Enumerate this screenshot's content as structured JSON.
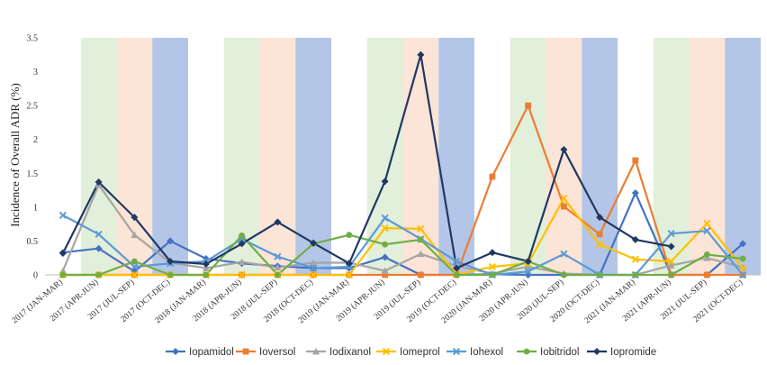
{
  "chart_data": {
    "type": "line",
    "title": "",
    "xlabel": "",
    "ylabel": "Incidence of Overall ADR (%)",
    "ylim": [
      0,
      3.5
    ],
    "yticks": [
      "0",
      "0.5",
      "1",
      "1.5",
      "2",
      "2.5",
      "3",
      "3.5"
    ],
    "grid": false,
    "legend_position": "bottom",
    "categories": [
      "2017 (JAN-MAR)",
      "2017 (APR-JUN)",
      "2017 (JUL-SEP)",
      "2017 (OCT-DEC)",
      "2018 (JAN-MAR)",
      "2018 (APR-JUN)",
      "2018 (JUL-SEP)",
      "2018 (OCT-DEC)",
      "2019 (JAN-MAR)",
      "2019 (APR-JUN)",
      "2019 (JUL-SEP)",
      "2019 (OCT-DEC)",
      "2020 (JAN-MAR)",
      "2020 (APR-JUN)",
      "2020 (JUL-SEP)",
      "2020 (OCT-DEC)",
      "2021 (JAN-MAR)",
      "2021 (APR-JUN)",
      "2021 (JUL-SEP)",
      "2021 (OCT-DEC)"
    ],
    "quarter_band_colors": {
      "APR-JUN": "#e2efda",
      "JUL-SEP": "#fce4d6",
      "OCT-DEC": "#b4c6e7"
    },
    "series": [
      {
        "name": "Iopamidol",
        "color": "#4472c4",
        "marker": "diamond",
        "values": [
          0.33,
          0.39,
          0.05,
          0.5,
          0.24,
          0.17,
          0.13,
          0.1,
          0.1,
          0.26,
          0.0,
          0.0,
          0.01,
          0.0,
          0.0,
          0.0,
          1.21,
          0.0,
          0.0,
          0.46
        ]
      },
      {
        "name": "Ioversol",
        "color": "#ed7d31",
        "marker": "square",
        "values": [
          0,
          0,
          0,
          0,
          0,
          0,
          0,
          0,
          0,
          0,
          0,
          0,
          1.45,
          2.5,
          1.01,
          0.6,
          1.69,
          0.0,
          0.0,
          0.0
        ]
      },
      {
        "name": "Iodixanol",
        "color": "#a5a5a5",
        "marker": "triangle",
        "values": [
          0.06,
          1.33,
          0.59,
          0.18,
          0.1,
          0.19,
          0.11,
          0.18,
          0.18,
          0.06,
          0.31,
          0.13,
          0.02,
          0.12,
          0.02,
          0.0,
          0.0,
          0.14,
          0.25,
          0.11
        ]
      },
      {
        "name": "Iomeprol",
        "color": "#ffc000",
        "marker": "x",
        "values": [
          0,
          0,
          0,
          0,
          0,
          0,
          0,
          0,
          0,
          0.69,
          0.68,
          0.0,
          0.12,
          0.17,
          1.13,
          0.45,
          0.23,
          0.2,
          0.76,
          0.1
        ]
      },
      {
        "name": "Iohexol",
        "color": "#5b9bd5",
        "marker": "x",
        "values": [
          0.88,
          0.6,
          0.12,
          0.17,
          0.2,
          0.53,
          0.27,
          0.1,
          0.12,
          0.84,
          0.53,
          0.2,
          0.0,
          0.05,
          0.31,
          0.0,
          0.0,
          0.61,
          0.65,
          0.0
        ]
      },
      {
        "name": "Iobitridol",
        "color": "#70ad47",
        "marker": "circle",
        "values": [
          0.0,
          0.0,
          0.2,
          0.0,
          0.0,
          0.58,
          0.0,
          0.46,
          0.59,
          0.45,
          0.52,
          0.0,
          0.0,
          0.2,
          0.0,
          0.0,
          0.0,
          0.0,
          0.3,
          0.24
        ]
      },
      {
        "name": "Iopromide",
        "color": "#203864",
        "marker": "diamond",
        "values": [
          0.32,
          1.37,
          0.85,
          0.2,
          0.16,
          0.46,
          0.78,
          0.47,
          0.17,
          1.38,
          3.25,
          0.1,
          0.33,
          0.2,
          1.85,
          0.85,
          0.52,
          0.42,
          null,
          null
        ]
      }
    ]
  }
}
